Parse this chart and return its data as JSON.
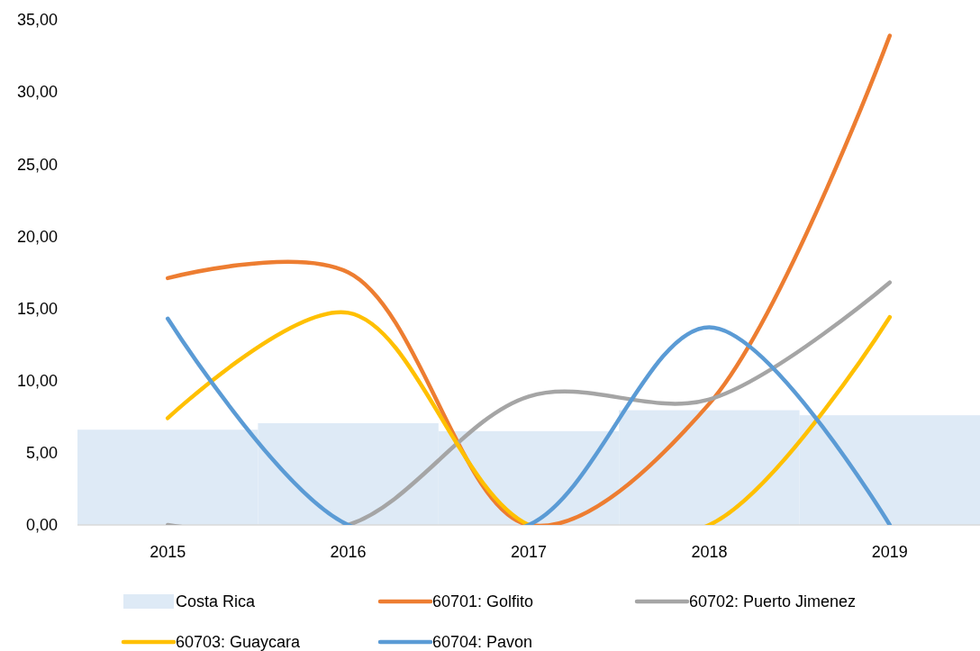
{
  "chart_data": {
    "type": "line",
    "categories": [
      "2015",
      "2016",
      "2017",
      "2018",
      "2019"
    ],
    "series": [
      {
        "name": "Costa Rica",
        "type": "bar",
        "color": "#deeaf6",
        "values": [
          6.6,
          7.05,
          6.5,
          7.95,
          7.6
        ]
      },
      {
        "name": "60701: Golfito",
        "color": "#ed7d31",
        "values": [
          17.1,
          17.5,
          0,
          8.4,
          33.9
        ]
      },
      {
        "name": "60702: Puerto Jimenez",
        "color": "#a5a5a5",
        "values": [
          0,
          0,
          8.9,
          8.7,
          16.8
        ]
      },
      {
        "name": "60703: Guaycara",
        "color": "#ffc000",
        "values": [
          7.4,
          14.7,
          0,
          0,
          14.4
        ]
      },
      {
        "name": "60704: Pavon",
        "color": "#5b9bd5",
        "values": [
          14.3,
          0,
          0,
          13.7,
          0
        ]
      }
    ],
    "ylim": [
      0,
      35
    ],
    "yticks": [
      {
        "value": 0,
        "label": "0,00"
      },
      {
        "value": 5,
        "label": "5,00"
      },
      {
        "value": 10,
        "label": "10,00"
      },
      {
        "value": 15,
        "label": "15,00"
      },
      {
        "value": 20,
        "label": "20,00"
      },
      {
        "value": 25,
        "label": "25,00"
      },
      {
        "value": 30,
        "label": "30,00"
      },
      {
        "value": 35,
        "label": "35,00"
      }
    ],
    "grid": false,
    "legend": "bottom"
  }
}
